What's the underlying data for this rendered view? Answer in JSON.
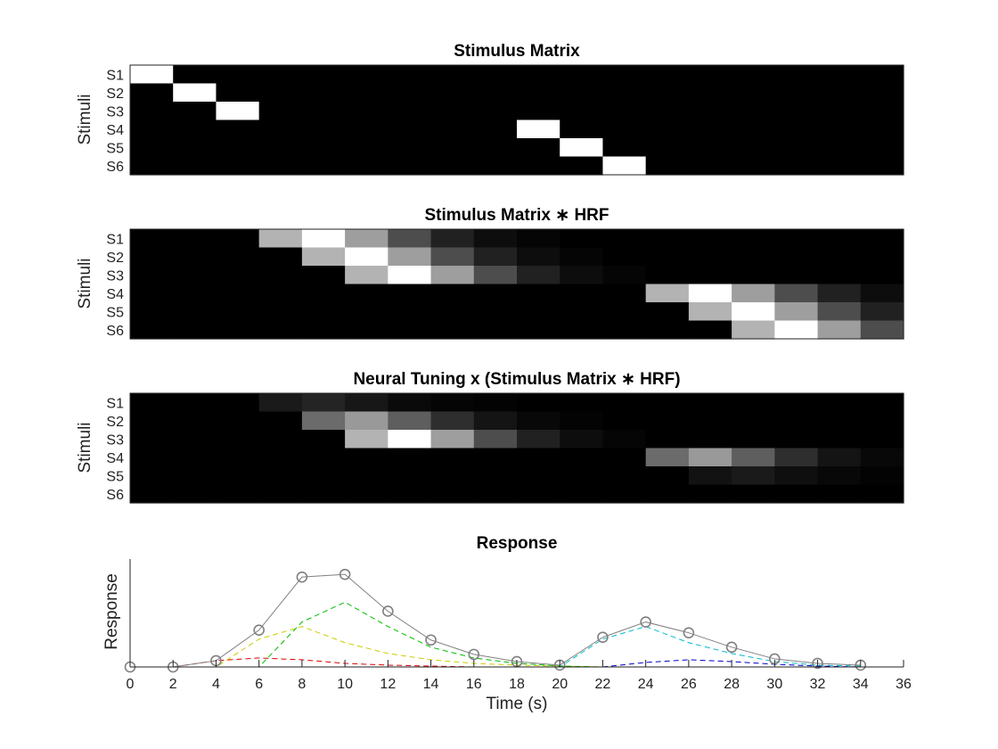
{
  "chart_data": [
    {
      "type": "heatmap",
      "title": "Stimulus Matrix",
      "ylabel": "Stimuli",
      "rows": [
        "S1",
        "S2",
        "S3",
        "S4",
        "S5",
        "S6"
      ],
      "colormap": "gray",
      "values": [
        [
          1,
          0,
          0,
          0,
          0,
          0,
          0,
          0,
          0,
          0,
          0,
          0,
          0,
          0,
          0,
          0,
          0,
          0
        ],
        [
          0,
          1,
          0,
          0,
          0,
          0,
          0,
          0,
          0,
          0,
          0,
          0,
          0,
          0,
          0,
          0,
          0,
          0
        ],
        [
          0,
          0,
          1,
          0,
          0,
          0,
          0,
          0,
          0,
          0,
          0,
          0,
          0,
          0,
          0,
          0,
          0,
          0
        ],
        [
          0,
          0,
          0,
          0,
          0,
          0,
          0,
          0,
          0,
          1,
          0,
          0,
          0,
          0,
          0,
          0,
          0,
          0
        ],
        [
          0,
          0,
          0,
          0,
          0,
          0,
          0,
          0,
          0,
          0,
          1,
          0,
          0,
          0,
          0,
          0,
          0,
          0
        ],
        [
          0,
          0,
          0,
          0,
          0,
          0,
          0,
          0,
          0,
          0,
          0,
          1,
          0,
          0,
          0,
          0,
          0,
          0
        ]
      ]
    },
    {
      "type": "heatmap",
      "title": "Stimulus Matrix ∗ HRF",
      "ylabel": "Stimuli",
      "rows": [
        "S1",
        "S2",
        "S3",
        "S4",
        "S5",
        "S6"
      ],
      "colormap": "gray",
      "values": [
        [
          0,
          0,
          0,
          0.7,
          1,
          0.62,
          0.3,
          0.13,
          0.05,
          0.02,
          0,
          0,
          0,
          0,
          0,
          0,
          0,
          0
        ],
        [
          0,
          0,
          0,
          0,
          0.7,
          1,
          0.62,
          0.3,
          0.13,
          0.05,
          0.02,
          0,
          0,
          0,
          0,
          0,
          0,
          0
        ],
        [
          0,
          0,
          0,
          0,
          0,
          0.7,
          1,
          0.62,
          0.3,
          0.13,
          0.05,
          0.02,
          0,
          0,
          0,
          0,
          0,
          0
        ],
        [
          0,
          0,
          0,
          0,
          0,
          0,
          0,
          0,
          0,
          0,
          0,
          0,
          0.7,
          1,
          0.62,
          0.3,
          0.13,
          0.05
        ],
        [
          0,
          0,
          0,
          0,
          0,
          0,
          0,
          0,
          0,
          0,
          0,
          0,
          0,
          0.7,
          1,
          0.62,
          0.3,
          0.13
        ],
        [
          0,
          0,
          0,
          0,
          0,
          0,
          0,
          0,
          0,
          0,
          0,
          0,
          0,
          0,
          0.7,
          1,
          0.62,
          0.3
        ]
      ]
    },
    {
      "type": "heatmap",
      "title": "Neural Tuning x (Stimulus Matrix ∗ HRF)",
      "ylabel": "Stimuli",
      "rows": [
        "S1",
        "S2",
        "S3",
        "S4",
        "S5",
        "S6"
      ],
      "colormap": "gray",
      "values": [
        [
          0,
          0,
          0,
          0.1,
          0.14,
          0.09,
          0.04,
          0.02,
          0.01,
          0,
          0,
          0,
          0,
          0,
          0,
          0,
          0,
          0
        ],
        [
          0,
          0,
          0,
          0,
          0.42,
          0.6,
          0.37,
          0.18,
          0.08,
          0.03,
          0.01,
          0,
          0,
          0,
          0,
          0,
          0,
          0
        ],
        [
          0,
          0,
          0,
          0,
          0,
          0.7,
          1,
          0.62,
          0.3,
          0.13,
          0.05,
          0.02,
          0,
          0,
          0,
          0,
          0,
          0
        ],
        [
          0,
          0,
          0,
          0,
          0,
          0,
          0,
          0,
          0,
          0,
          0,
          0,
          0.42,
          0.6,
          0.37,
          0.18,
          0.08,
          0.03
        ],
        [
          0,
          0,
          0,
          0,
          0,
          0,
          0,
          0,
          0,
          0,
          0,
          0,
          0,
          0.07,
          0.1,
          0.06,
          0.03,
          0.01
        ],
        [
          0,
          0,
          0,
          0,
          0,
          0,
          0,
          0,
          0,
          0,
          0,
          0,
          0,
          0,
          0,
          0,
          0,
          0
        ]
      ]
    },
    {
      "type": "line",
      "title": "Response",
      "xlabel": "Time (s)",
      "ylabel": "Response",
      "xlim": [
        0,
        36
      ],
      "ylim": [
        0,
        1.2
      ],
      "xticks": [
        0,
        2,
        4,
        6,
        8,
        10,
        12,
        14,
        16,
        18,
        20,
        22,
        24,
        26,
        28,
        30,
        32,
        34,
        36
      ],
      "x": [
        0,
        2,
        4,
        6,
        8,
        10,
        12,
        14,
        16,
        18,
        20,
        22,
        24,
        26,
        28,
        30,
        32,
        34
      ],
      "series": [
        {
          "color": "#808080",
          "style": "solid-circles",
          "values": [
            0,
            0,
            0.07,
            0.41,
            1.0,
            1.03,
            0.62,
            0.3,
            0.14,
            0.06,
            0.02,
            0.33,
            0.5,
            0.38,
            0.22,
            0.09,
            0.04,
            0.02
          ]
        },
        {
          "color": "#dd0000",
          "style": "dashed",
          "values": [
            0,
            0,
            0.07,
            0.1,
            0.08,
            0.04,
            0.02,
            0.01,
            0,
            0,
            0,
            0,
            0,
            0,
            0,
            0,
            0,
            0
          ]
        },
        {
          "color": "#cccc00",
          "style": "dashed",
          "values": [
            0,
            0,
            0,
            0.31,
            0.45,
            0.27,
            0.15,
            0.08,
            0.04,
            0.02,
            0.01,
            0,
            0,
            0,
            0,
            0,
            0,
            0
          ]
        },
        {
          "color": "#00bb00",
          "style": "dashed",
          "values": [
            0,
            0,
            0,
            0,
            0.5,
            0.72,
            0.45,
            0.22,
            0.1,
            0.04,
            0.01,
            0,
            0,
            0,
            0,
            0,
            0,
            0
          ]
        },
        {
          "color": "#00bbcc",
          "style": "dashed",
          "values": [
            0,
            0,
            0,
            0,
            0,
            0,
            0,
            0,
            0,
            0,
            0,
            0.31,
            0.45,
            0.27,
            0.15,
            0.06,
            0.02,
            0.01
          ]
        },
        {
          "color": "#0000cc",
          "style": "dashed",
          "values": [
            0,
            0,
            0,
            0,
            0,
            0,
            0,
            0,
            0,
            0,
            0,
            0,
            0.05,
            0.08,
            0.06,
            0.03,
            0.01,
            0
          ]
        },
        {
          "color": "#cc00cc",
          "style": "dashed",
          "values": [
            0,
            0,
            0,
            0,
            0,
            0,
            0,
            0,
            0,
            0,
            0,
            0,
            0,
            0,
            0,
            0,
            0,
            0
          ]
        }
      ]
    }
  ]
}
